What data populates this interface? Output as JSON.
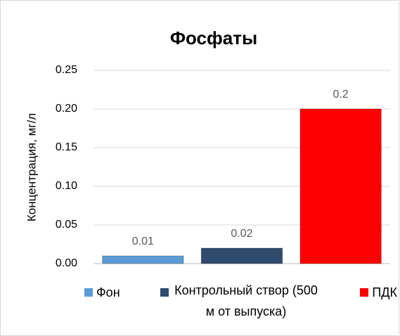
{
  "chart_data": {
    "type": "bar",
    "title": "Фосфаты",
    "y_label": "Концентрация, мг/л",
    "categories": [
      null
    ],
    "series": [
      {
        "name": "Фон",
        "color": "#5b9bd5",
        "values": [
          0.01
        ]
      },
      {
        "name": "Контрольный створ (500 м от выпуска)",
        "color": "#2f4b6e",
        "values": [
          0.02
        ]
      },
      {
        "name": "ПДК",
        "color": "#ff0000",
        "values": [
          0.2
        ]
      }
    ],
    "ylim": [
      0,
      0.25
    ],
    "yticks": [
      {
        "value": 0,
        "label": "0.00"
      },
      {
        "value": 0.05,
        "label": "0.05"
      },
      {
        "value": 0.1,
        "label": "0.10"
      },
      {
        "value": 0.15,
        "label": "0.15"
      },
      {
        "value": 0.2,
        "label": "0.20"
      },
      {
        "value": 0.25,
        "label": "0.25"
      }
    ],
    "grid": true
  }
}
